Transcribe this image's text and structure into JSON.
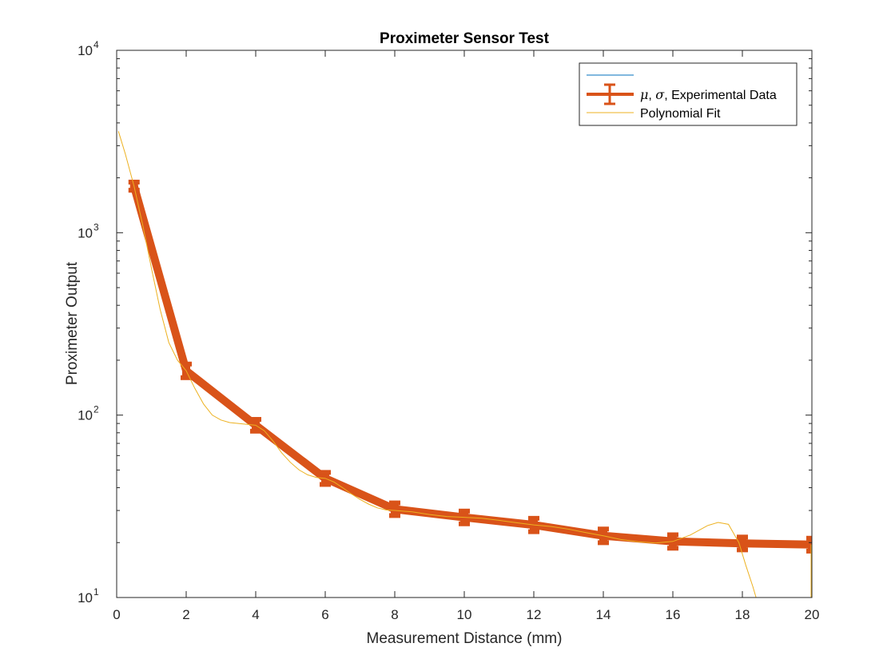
{
  "chart_data": {
    "type": "line",
    "title": "Proximeter Sensor Test",
    "xlabel": "Measurement Distance (mm)",
    "ylabel": "Proximeter Output",
    "xlim": [
      0,
      20
    ],
    "ylim": [
      10,
      10000
    ],
    "yscale": "log",
    "x_ticks": [
      0,
      2,
      4,
      6,
      8,
      10,
      12,
      14,
      16,
      18,
      20
    ],
    "y_ticks": [
      {
        "value": 10,
        "base": "10",
        "exp": "1"
      },
      {
        "value": 100,
        "base": "10",
        "exp": "2"
      },
      {
        "value": 1000,
        "base": "10",
        "exp": "3"
      },
      {
        "value": 10000,
        "base": "10",
        "exp": "4"
      }
    ],
    "grid": false,
    "box": true,
    "legend_position": "top-right",
    "legend": [
      {
        "label": "",
        "color": "#0072BD",
        "kind": "line"
      },
      {
        "label_parts": [
          "μ",
          ", ",
          "σ",
          ", Experimental Data"
        ],
        "color": "#D95319",
        "kind": "errorbar"
      },
      {
        "label": "Polynomial Fit",
        "color": "#EDB120",
        "kind": "line"
      }
    ],
    "series": [
      {
        "name": "μ, σ, Experimental Data",
        "color": "#D95319",
        "x": [
          0.5,
          2,
          4,
          6,
          8,
          10,
          12,
          14,
          16,
          18,
          20
        ],
        "y": [
          1800,
          175,
          88,
          45,
          30.5,
          27.5,
          25,
          21.8,
          20.3,
          19.8,
          19.5
        ],
        "err": [
          20,
          8,
          3,
          1.6,
          1.2,
          1.1,
          1.1,
          1.0,
          0.9,
          0.8,
          0.8
        ]
      },
      {
        "name": "Polynomial Fit",
        "color": "#EDB120",
        "x": [
          0.05,
          0.25,
          0.5,
          0.75,
          1.0,
          1.25,
          1.5,
          1.75,
          2.0,
          2.25,
          2.5,
          2.75,
          3.0,
          3.25,
          3.5,
          3.75,
          4.0,
          4.25,
          4.5,
          4.75,
          5.0,
          5.25,
          5.5,
          5.75,
          6.0,
          6.25,
          6.5,
          6.75,
          7.0,
          7.25,
          7.5,
          7.75,
          8.0,
          8.5,
          9.0,
          9.5,
          10.0,
          10.5,
          11.0,
          11.5,
          12.0,
          12.5,
          13.0,
          13.5,
          14.0,
          14.5,
          15.0,
          15.5,
          16.0,
          16.5,
          17.0,
          17.3,
          17.6,
          17.9,
          18.1,
          18.3,
          18.45
        ],
        "y": [
          3600,
          2700,
          1800,
          1100,
          640,
          380,
          250,
          200,
          175,
          140,
          115,
          100,
          94,
          91,
          90,
          89,
          88,
          82,
          72,
          62,
          55,
          50,
          47,
          45.5,
          45,
          43,
          40,
          37,
          34.5,
          32.5,
          31,
          30.2,
          30,
          29.5,
          28.5,
          27.8,
          27.5,
          27.2,
          26.5,
          25.7,
          25,
          24.5,
          23.7,
          22.7,
          21.8,
          20.8,
          20.2,
          19.9,
          20.3,
          22.0,
          24.8,
          25.8,
          25.2,
          20.0,
          15.0,
          11.5,
          9.2
        ]
      }
    ]
  }
}
